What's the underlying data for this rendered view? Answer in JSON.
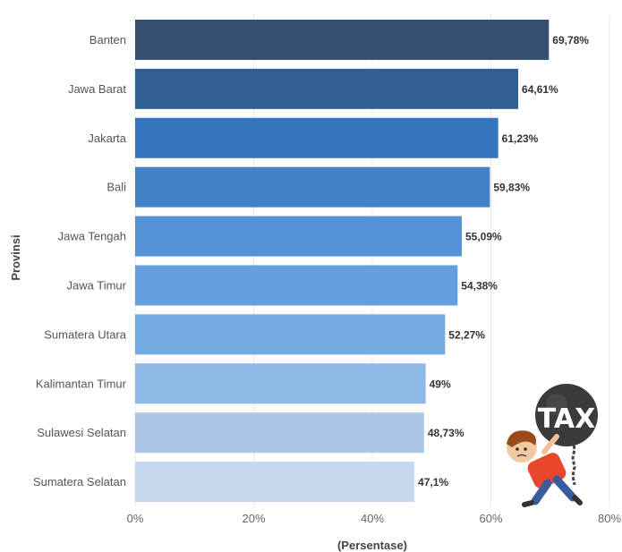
{
  "chart_data": {
    "type": "bar",
    "orientation": "horizontal",
    "categories": [
      "Banten",
      "Jawa Barat",
      "Jakarta",
      "Bali",
      "Jawa Tengah",
      "Jawa Timur",
      "Sumatera Utara",
      "Kalimantan Timur",
      "Sulawesi Selatan",
      "Sumatera Selatan"
    ],
    "values": [
      69.78,
      64.61,
      61.23,
      59.83,
      55.09,
      54.38,
      52.27,
      49,
      48.73,
      47.1
    ],
    "value_labels": [
      "69,78%",
      "64,61%",
      "61,23%",
      "59,83%",
      "55,09%",
      "54,38%",
      "52,27%",
      "49%",
      "48,73%",
      "47,1%"
    ],
    "bar_colors": [
      "#34506f",
      "#2f5f95",
      "#3476bd",
      "#4382c8",
      "#5593d7",
      "#649fdf",
      "#75aae0",
      "#8fb9e7",
      "#aac8e6",
      "#c6d9ee"
    ],
    "xlim": [
      0,
      80
    ],
    "x_ticks": [
      0,
      20,
      40,
      60,
      80
    ],
    "x_tick_labels": [
      "0%",
      "20%",
      "40%",
      "60%",
      "80%"
    ],
    "xlabel": "(Persentase)",
    "ylabel": "Provinsi",
    "grid": true,
    "illustration": {
      "icon": "tax-burden-icon",
      "text": "TAX"
    }
  }
}
